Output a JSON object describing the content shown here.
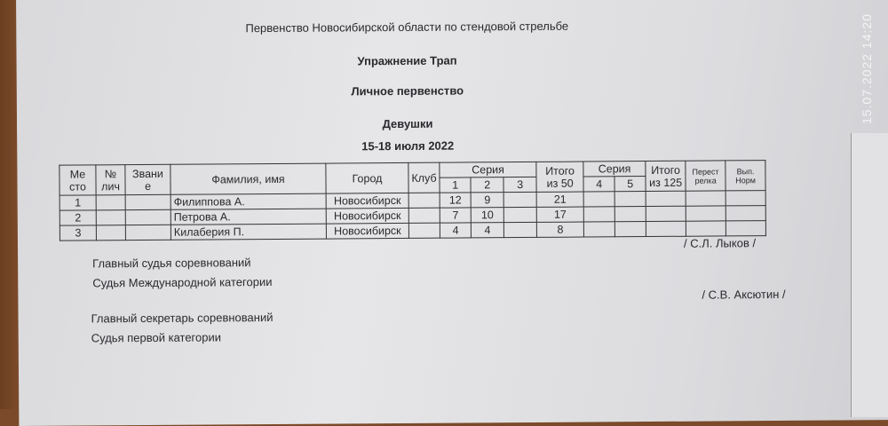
{
  "header": {
    "title": "Первенство Новосибирской области по стендовой стрельбе",
    "exercise": "Упражнение Трап",
    "category": "Личное первенство",
    "group": "Девушки",
    "dates": "15-18 июля 2022"
  },
  "table": {
    "headers": {
      "place": "Ме сто",
      "number": "№ лич",
      "rank": "Звани е",
      "name": "Фамилия, имя",
      "city": "Город",
      "club": "Клуб",
      "series": "Серия",
      "s1": "1",
      "s2": "2",
      "s3": "3",
      "total50": "Итого из 50",
      "series2": "Серия",
      "s4": "4",
      "s5": "5",
      "total125": "Итого из 125",
      "shootoff": "Перест релка",
      "norm": "Вып. Норм"
    },
    "rows": [
      {
        "place": "1",
        "name": "Филиппова А.",
        "city": "Новосибирск",
        "s1": "12",
        "s2": "9",
        "total50": "21"
      },
      {
        "place": "2",
        "name": "Петрова А.",
        "city": "Новосибирск",
        "s1": "7",
        "s2": "10",
        "total50": "17"
      },
      {
        "place": "3",
        "name": "Килаберия П.",
        "city": "Новосибирск",
        "s1": "4",
        "s2": "4",
        "total50": "8"
      }
    ]
  },
  "signatures": {
    "judge_title": "Главный судья соревнований",
    "judge_category": "Судья Международной категории",
    "judge_name": "/ С.Л. Лыков /",
    "secretary_title": "Главный секретарь соревнований",
    "secretary_category": "Судья первой категории",
    "secretary_name": "/ С.В. Аксютин /"
  },
  "timestamp": "15.07.2022 14:20"
}
